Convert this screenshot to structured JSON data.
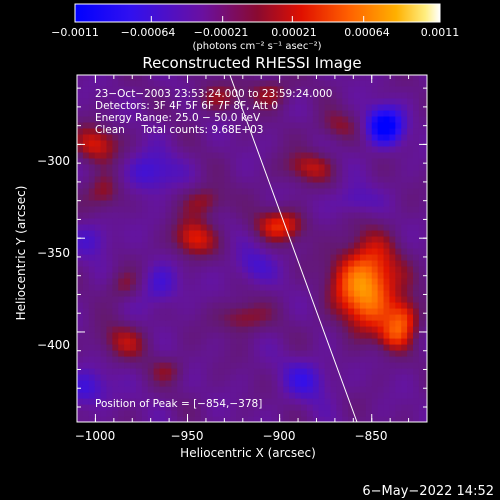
{
  "chart_data": {
    "type": "heatmap",
    "title": "Reconstructed RHESSI Image",
    "xlabel": "Heliocentric X (arcsec)",
    "ylabel": "Heliocentric Y (arcsec)",
    "xlim": [
      -1010,
      -820
    ],
    "ylim": [
      -448,
      -263
    ],
    "x_ticks": [
      -1000,
      -950,
      -900,
      -850
    ],
    "x_tick_labels": [
      "−1000",
      "−950",
      "−900",
      "−850"
    ],
    "y_ticks": [
      -300,
      -350,
      -400
    ],
    "y_tick_labels": [
      "−300",
      "−350",
      "−400"
    ],
    "colorbar": {
      "range": [
        -0.0011,
        0.0011
      ],
      "ticks": [
        -0.0011,
        -0.00064,
        -0.00021,
        0.00021,
        0.00064,
        0.0011
      ],
      "tick_labels": [
        "−0.0011",
        "−0.00064",
        "−0.00021",
        "0.00021",
        "0.00064",
        "0.0011"
      ],
      "label": "(photons cm⁻² s⁻¹ asec⁻²)"
    },
    "annotations": [
      "23−Oct−2003 23:53:24.000 to 23:59:24.000",
      "Detectors: 3F 4F 5F 6F 7F 8F, Att 0",
      "Energy Range: 25.0 − 50.0 keV",
      "Clean     Total counts: 9.68E+03"
    ],
    "peak_label": "Position of Peak = [−854,−378]",
    "peak": {
      "x": -854,
      "y": -378
    },
    "limb_line": [
      {
        "x": -927,
        "y": -263
      },
      {
        "x": -858,
        "y": -448
      }
    ],
    "sources": [
      {
        "x": -853,
        "y": -375,
        "sx": 12,
        "sy": 16,
        "amp": 0.00105
      },
      {
        "x": -832,
        "y": -392,
        "sx": 6,
        "sy": 7,
        "amp": 0.0006
      },
      {
        "x": -838,
        "y": -402,
        "sx": 6,
        "sy": 6,
        "amp": 0.00045
      },
      {
        "x": -900,
        "y": -343,
        "sx": 10,
        "sy": 6,
        "amp": 0.00055
      },
      {
        "x": -947,
        "y": -350,
        "sx": 8,
        "sy": 7,
        "amp": 0.00055
      },
      {
        "x": -1000,
        "y": -300,
        "sx": 9,
        "sy": 7,
        "amp": 0.0005
      },
      {
        "x": -995,
        "y": -325,
        "sx": 7,
        "sy": 7,
        "amp": 0.0004
      },
      {
        "x": -940,
        "y": -330,
        "sx": 8,
        "sy": 6,
        "amp": 0.0004
      },
      {
        "x": -985,
        "y": -375,
        "sx": 7,
        "sy": 6,
        "amp": 0.0003
      },
      {
        "x": -920,
        "y": -392,
        "sx": 9,
        "sy": 6,
        "amp": 0.0004
      },
      {
        "x": -885,
        "y": -312,
        "sx": 10,
        "sy": 6,
        "amp": 0.0004
      },
      {
        "x": -905,
        "y": -272,
        "sx": 9,
        "sy": 6,
        "amp": 0.00035
      },
      {
        "x": -935,
        "y": -275,
        "sx": 10,
        "sy": 6,
        "amp": 0.0003
      },
      {
        "x": -985,
        "y": -405,
        "sx": 10,
        "sy": 7,
        "amp": 0.00035
      },
      {
        "x": -870,
        "y": -290,
        "sx": 8,
        "sy": 6,
        "amp": 0.0003
      },
      {
        "x": -960,
        "y": -420,
        "sx": 7,
        "sy": 5,
        "amp": 0.00025
      },
      {
        "x": -843,
        "y": -290,
        "sx": 7,
        "sy": 7,
        "amp": -0.0009
      },
      {
        "x": -970,
        "y": -315,
        "sx": 10,
        "sy": 8,
        "amp": -0.0004
      },
      {
        "x": -1005,
        "y": -430,
        "sx": 9,
        "sy": 7,
        "amp": -0.0004
      },
      {
        "x": -885,
        "y": -425,
        "sx": 10,
        "sy": 8,
        "amp": -0.00035
      },
      {
        "x": -915,
        "y": -365,
        "sx": 8,
        "sy": 7,
        "amp": -0.0003
      },
      {
        "x": -965,
        "y": -375,
        "sx": 8,
        "sy": 8,
        "amp": -0.00035
      },
      {
        "x": -1000,
        "y": -350,
        "sx": 8,
        "sy": 7,
        "amp": -0.0003
      },
      {
        "x": -860,
        "y": -330,
        "sx": 8,
        "sy": 6,
        "amp": -0.0003
      }
    ]
  },
  "footer": {
    "date_text": "6−May−2022 14:52"
  },
  "colors": {
    "background": "#000000",
    "foreground": "#ffffff",
    "colormap": [
      "#0000ff",
      "#5a00c8",
      "#701870",
      "#b41e00",
      "#ff2800",
      "#ff7800",
      "#ffb400",
      "#ffe650",
      "#ffffff"
    ]
  }
}
